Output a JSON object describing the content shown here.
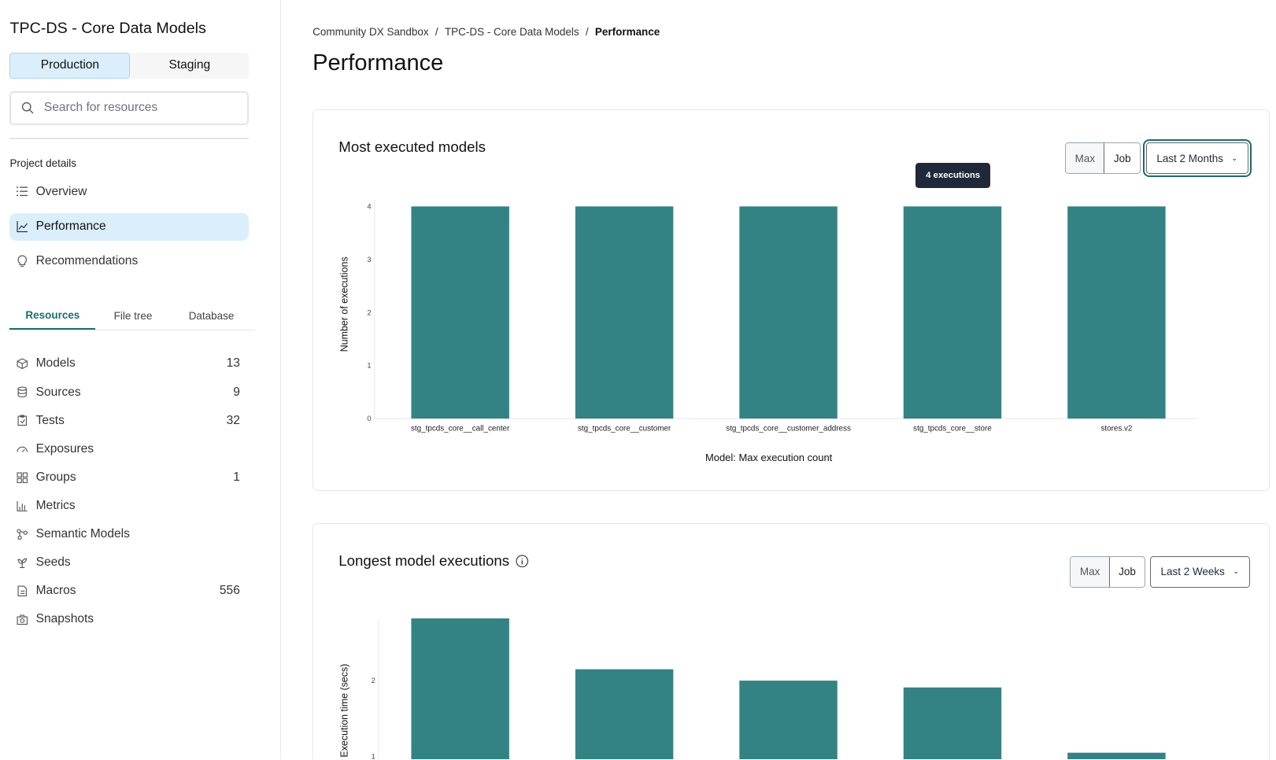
{
  "sidebar": {
    "project_title": "TPC-DS - Core Data Models",
    "environments": [
      {
        "label": "Production",
        "active": true
      },
      {
        "label": "Staging",
        "active": false
      }
    ],
    "search_placeholder": "Search for resources",
    "section_label": "Project details",
    "nav": [
      {
        "label": "Overview",
        "icon": "list-icon"
      },
      {
        "label": "Performance",
        "icon": "chart-line-icon",
        "active": true
      },
      {
        "label": "Recommendations",
        "icon": "lightbulb-icon"
      }
    ],
    "tabs": [
      {
        "label": "Resources",
        "active": true
      },
      {
        "label": "File tree"
      },
      {
        "label": "Database"
      }
    ],
    "resources": [
      {
        "label": "Models",
        "count": "13",
        "icon": "cube-icon"
      },
      {
        "label": "Sources",
        "count": "9",
        "icon": "database-icon"
      },
      {
        "label": "Tests",
        "count": "32",
        "icon": "clipboard-check-icon"
      },
      {
        "label": "Exposures",
        "count": "",
        "icon": "gauge-icon"
      },
      {
        "label": "Groups",
        "count": "1",
        "icon": "grid-icon"
      },
      {
        "label": "Metrics",
        "count": "",
        "icon": "bar-chart-icon"
      },
      {
        "label": "Semantic Models",
        "count": "",
        "icon": "nodes-icon"
      },
      {
        "label": "Seeds",
        "count": "",
        "icon": "sprout-icon"
      },
      {
        "label": "Macros",
        "count": "556",
        "icon": "file-text-icon"
      },
      {
        "label": "Snapshots",
        "count": "",
        "icon": "camera-icon"
      }
    ]
  },
  "breadcrumb": [
    "Community DX Sandbox",
    "TPC-DS - Core Data Models",
    "Performance"
  ],
  "page_title": "Performance",
  "accent": "#338385",
  "cards": [
    {
      "title": "Most executed models",
      "toggle": [
        "Max",
        "Job"
      ],
      "range": "Last 2 Months",
      "tooltip": "4 executions"
    },
    {
      "title": "Longest model executions",
      "toggle": [
        "Max",
        "Job"
      ],
      "range": "Last 2 Weeks",
      "info_icon": "info-icon"
    }
  ],
  "chart_data": [
    {
      "type": "bar",
      "title": "Most executed models",
      "xlabel": "Model: Max execution count",
      "ylabel": "Number of executions",
      "categories": [
        "stg_tpcds_core__call_center",
        "stg_tpcds_core__customer",
        "stg_tpcds_core__customer_address",
        "stg_tpcds_core__store",
        "stores.v2"
      ],
      "values": [
        4,
        4,
        4,
        4,
        4
      ],
      "ylim": [
        0,
        4
      ],
      "yticks": [
        "0",
        "1",
        "2",
        "3",
        "4"
      ],
      "grid": false
    },
    {
      "type": "bar",
      "title": "Longest model executions",
      "ylabel": "Execution time (secs)",
      "values": [
        2.82,
        2.15,
        2.0,
        1.91,
        1.05
      ],
      "yticks": [
        "1",
        "2"
      ],
      "grid": false
    }
  ]
}
